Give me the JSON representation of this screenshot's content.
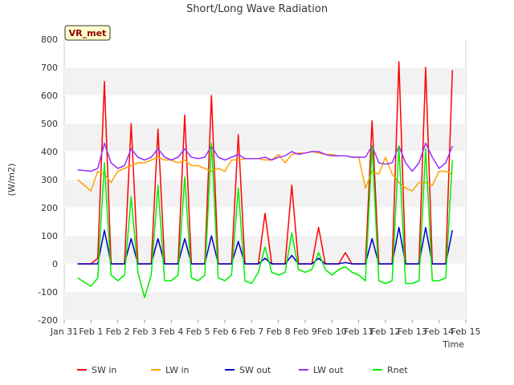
{
  "chart_data": {
    "type": "line",
    "title": "Short/Long Wave Radiation",
    "xlabel": "Time",
    "ylabel": "(W/m2)",
    "badge": "VR_met",
    "ylim": [
      -200,
      800
    ],
    "yticks": [
      -200,
      -100,
      0,
      100,
      200,
      300,
      400,
      500,
      600,
      700,
      800
    ],
    "xlim": [
      "2025-01-31",
      "2025-02-15"
    ],
    "x_tick_labels": [
      "Jan 31",
      "Feb 1",
      "Feb 2",
      "Feb 3",
      "Feb 4",
      "Feb 5",
      "Feb 6",
      "Feb 7",
      "Feb 8",
      "Feb 9",
      "Feb 10",
      "Feb 11",
      "Feb 12",
      "Feb 13",
      "Feb 14",
      "Feb 15"
    ],
    "legend_position": "bottom",
    "grid": true,
    "series_style": [
      {
        "name": "SW in",
        "color": "#ff0000"
      },
      {
        "name": "LW in",
        "color": "#ffa500"
      },
      {
        "name": "SW out",
        "color": "#0000cc"
      },
      {
        "name": "LW out",
        "color": "#9b30ff"
      },
      {
        "name": "Rnet",
        "color": "#00ee00"
      }
    ],
    "x": [
      "2025-01-31T12:00",
      "2025-02-01",
      "2025-02-01T06:00",
      "2025-02-01T12:00",
      "2025-02-01T18:00",
      "2025-02-02",
      "2025-02-02T06:00",
      "2025-02-02T12:00",
      "2025-02-02T18:00",
      "2025-02-03",
      "2025-02-03T06:00",
      "2025-02-03T12:00",
      "2025-02-03T18:00",
      "2025-02-04",
      "2025-02-04T06:00",
      "2025-02-04T12:00",
      "2025-02-04T18:00",
      "2025-02-05",
      "2025-02-05T06:00",
      "2025-02-05T12:00",
      "2025-02-05T18:00",
      "2025-02-06",
      "2025-02-06T06:00",
      "2025-02-06T12:00",
      "2025-02-06T18:00",
      "2025-02-07",
      "2025-02-07T06:00",
      "2025-02-07T12:00",
      "2025-02-07T18:00",
      "2025-02-08",
      "2025-02-08T06:00",
      "2025-02-08T12:00",
      "2025-02-08T18:00",
      "2025-02-09",
      "2025-02-09T06:00",
      "2025-02-09T12:00",
      "2025-02-09T18:00",
      "2025-02-10",
      "2025-02-10T06:00",
      "2025-02-10T12:00",
      "2025-02-10T18:00",
      "2025-02-11",
      "2025-02-11T06:00",
      "2025-02-11T12:00",
      "2025-02-11T18:00",
      "2025-02-12",
      "2025-02-12T06:00",
      "2025-02-12T12:00",
      "2025-02-12T18:00",
      "2025-02-13",
      "2025-02-13T06:00",
      "2025-02-13T12:00",
      "2025-02-13T18:00",
      "2025-02-14",
      "2025-02-14T06:00",
      "2025-02-14T12:00"
    ],
    "series": [
      {
        "name": "SW in",
        "values": [
          0,
          0,
          20,
          650,
          0,
          0,
          0,
          500,
          0,
          0,
          0,
          480,
          0,
          0,
          0,
          530,
          0,
          0,
          0,
          600,
          0,
          0,
          0,
          460,
          0,
          0,
          0,
          180,
          0,
          0,
          0,
          280,
          0,
          0,
          0,
          130,
          0,
          0,
          0,
          40,
          0,
          0,
          0,
          510,
          0,
          0,
          0,
          720,
          0,
          0,
          0,
          700,
          0,
          0,
          0,
          690
        ]
      },
      {
        "name": "LW in",
        "values": [
          300,
          260,
          330,
          320,
          290,
          330,
          340,
          350,
          360,
          360,
          370,
          380,
          370,
          370,
          360,
          370,
          350,
          350,
          340,
          330,
          340,
          330,
          370,
          370,
          375,
          375,
          375,
          370,
          370,
          390,
          360,
          390,
          395,
          395,
          400,
          395,
          390,
          390,
          385,
          385,
          380,
          380,
          270,
          330,
          320,
          380,
          320,
          290,
          270,
          260,
          290,
          290,
          280,
          330,
          330,
          320
        ]
      },
      {
        "name": "SW out",
        "values": [
          0,
          0,
          0,
          120,
          0,
          0,
          0,
          90,
          0,
          0,
          0,
          90,
          0,
          0,
          0,
          90,
          0,
          0,
          0,
          100,
          0,
          0,
          0,
          80,
          0,
          0,
          0,
          20,
          0,
          0,
          0,
          30,
          0,
          0,
          0,
          20,
          0,
          0,
          0,
          5,
          0,
          0,
          0,
          90,
          0,
          0,
          0,
          130,
          0,
          0,
          0,
          130,
          0,
          0,
          0,
          120
        ]
      },
      {
        "name": "LW out",
        "values": [
          335,
          330,
          340,
          430,
          360,
          340,
          350,
          410,
          380,
          370,
          380,
          410,
          380,
          370,
          380,
          410,
          380,
          375,
          380,
          420,
          380,
          370,
          380,
          390,
          375,
          375,
          375,
          380,
          370,
          380,
          385,
          400,
          390,
          395,
          400,
          400,
          390,
          385,
          385,
          385,
          380,
          380,
          380,
          420,
          360,
          355,
          360,
          420,
          360,
          330,
          360,
          430,
          380,
          340,
          360,
          420
        ]
      },
      {
        "name": "Rnet",
        "values": [
          -50,
          -80,
          -50,
          360,
          -40,
          -60,
          -40,
          240,
          -30,
          -120,
          -40,
          280,
          -60,
          -60,
          -40,
          310,
          -50,
          -60,
          -40,
          430,
          -50,
          -60,
          -40,
          270,
          -60,
          -70,
          -30,
          60,
          -30,
          -40,
          -30,
          110,
          -20,
          -30,
          -20,
          40,
          -20,
          -40,
          -20,
          -10,
          -30,
          -40,
          -60,
          420,
          -60,
          -70,
          -60,
          420,
          -70,
          -70,
          -60,
          410,
          -60,
          -60,
          -50,
          370
        ]
      }
    ]
  }
}
